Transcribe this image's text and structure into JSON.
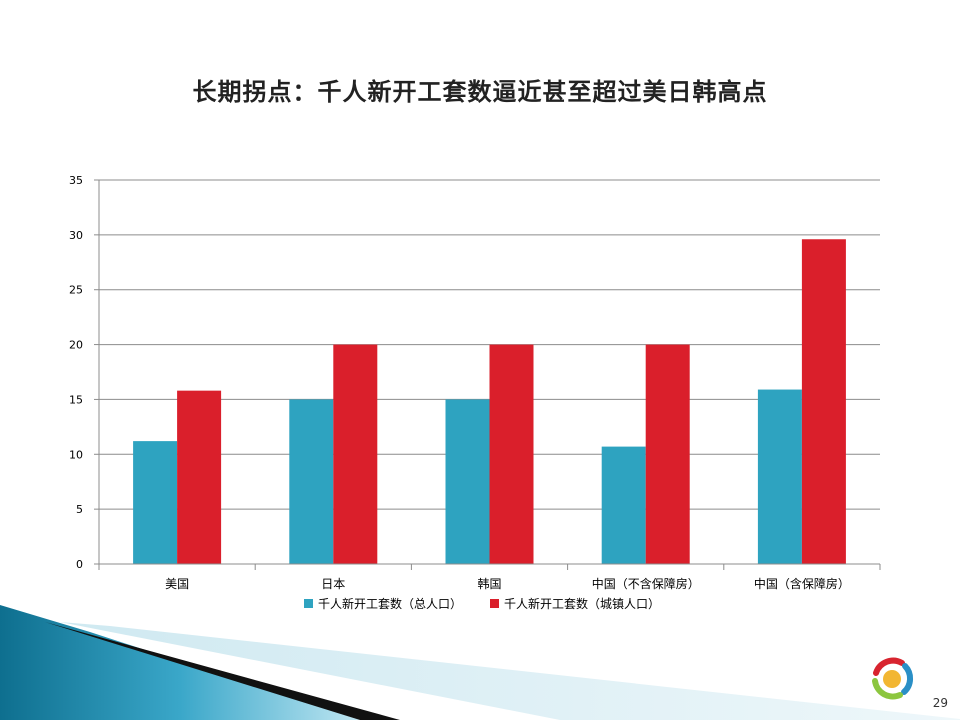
{
  "slide": {
    "title": "长期拐点：千人新开工套数逼近甚至超过美日韩高点",
    "page_number": "29"
  },
  "colors": {
    "series_total": "#2ea3c0",
    "series_urban": "#da1f2b",
    "gridline": "#8c8c8c",
    "axis": "#8c8c8c"
  },
  "chart_data": {
    "type": "bar",
    "categories": [
      "美国",
      "日本",
      "韩国",
      "中国（不含保障房）",
      "中国（含保障房）"
    ],
    "series": [
      {
        "name": "千人新开工套数（总人口）",
        "values": [
          11.2,
          15.0,
          15.0,
          10.7,
          15.9
        ]
      },
      {
        "name": "千人新开工套数（城镇人口）",
        "values": [
          15.8,
          20.0,
          20.0,
          20.0,
          29.6
        ]
      }
    ],
    "ylim": [
      0,
      35
    ],
    "yticks": [
      0,
      5,
      10,
      15,
      20,
      25,
      30,
      35
    ],
    "grid": true,
    "legend": "bottom",
    "xlabel": "",
    "ylabel": ""
  }
}
